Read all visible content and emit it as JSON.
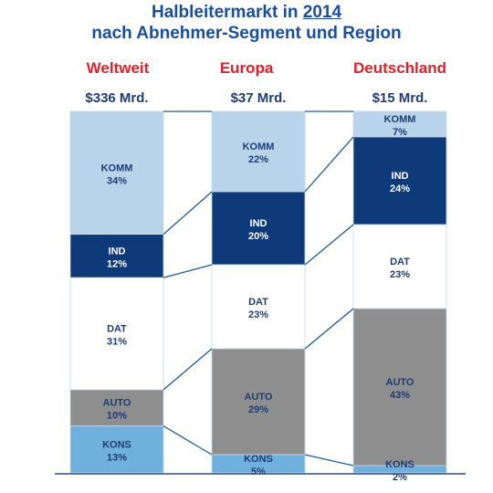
{
  "title": {
    "line1_prefix": "Halbleitermarkt in ",
    "line1_year": "2014",
    "line2": "nach Abnehmer-Segment und Region"
  },
  "colors": {
    "KOMM": "#b8d3ea",
    "IND": "#0e3a7a",
    "DAT": "#ffffff",
    "AUTO": "#8e8e8e",
    "KONS": "#6fb0dc",
    "connector": "#1f5a9a",
    "region_text": "#e0202a",
    "total_text": "#1f3d73"
  },
  "chart_data": {
    "type": "bar",
    "subtype": "stacked-100-percent",
    "title": "Halbleitermarkt in 2014 nach Abnehmer-Segment und Region",
    "segments": [
      "KOMM",
      "IND",
      "DAT",
      "AUTO",
      "KONS"
    ],
    "categories": [
      {
        "region": "Weltweit",
        "total": "$336 Mrd.",
        "values": [
          {
            "segment": "KOMM",
            "percent": 34,
            "label": "34%"
          },
          {
            "segment": "IND",
            "percent": 12,
            "label": "12%"
          },
          {
            "segment": "DAT",
            "percent": 31,
            "label": "31%"
          },
          {
            "segment": "AUTO",
            "percent": 10,
            "label": "10%"
          },
          {
            "segment": "KONS",
            "percent": 13,
            "label": "13%"
          }
        ]
      },
      {
        "region": "Europa",
        "total": "$37 Mrd.",
        "values": [
          {
            "segment": "KOMM",
            "percent": 22,
            "label": "22%"
          },
          {
            "segment": "IND",
            "percent": 20,
            "label": "20%"
          },
          {
            "segment": "DAT",
            "percent": 23,
            "label": "23%"
          },
          {
            "segment": "AUTO",
            "percent": 29,
            "label": "29%"
          },
          {
            "segment": "KONS",
            "percent": 5,
            "label": "5%"
          }
        ]
      },
      {
        "region": "Deutschland",
        "total": "$15 Mrd.",
        "values": [
          {
            "segment": "KOMM",
            "percent": 7,
            "label": "7%"
          },
          {
            "segment": "IND",
            "percent": 24,
            "label": "24%"
          },
          {
            "segment": "DAT",
            "percent": 23,
            "label": "23%"
          },
          {
            "segment": "AUTO",
            "percent": 43,
            "label": "43%"
          },
          {
            "segment": "KONS",
            "percent": 2,
            "label": "2%"
          }
        ]
      }
    ],
    "legend": "none",
    "grid": false
  }
}
